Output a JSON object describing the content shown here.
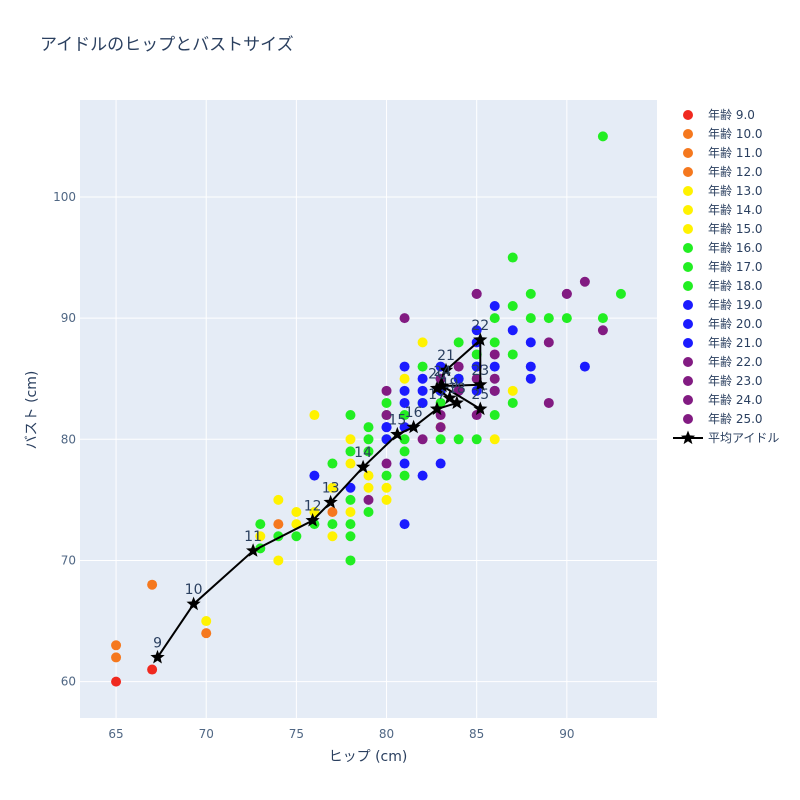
{
  "chart_data": {
    "type": "scatter",
    "title": "アイドルのヒップとバストサイズ",
    "xlabel": "ヒップ (cm)",
    "ylabel": "バスト (cm)",
    "xlim": [
      63,
      95
    ],
    "ylim": [
      57,
      108
    ],
    "xticks": [
      65,
      70,
      75,
      80,
      85,
      90
    ],
    "yticks": [
      60,
      70,
      80,
      90,
      100
    ],
    "grid": true,
    "legend_position": "right",
    "series": [
      {
        "name": "年齢 9.0",
        "color": "#f0291f",
        "points": [
          [
            65,
            60
          ],
          [
            67,
            61
          ]
        ]
      },
      {
        "name": "年齢 10.0",
        "color": "#f5781e",
        "points": [
          [
            65,
            63
          ],
          [
            65,
            62
          ],
          [
            67,
            68
          ]
        ]
      },
      {
        "name": "年齢 11.0",
        "color": "#f5781e",
        "points": [
          [
            70,
            64
          ]
        ]
      },
      {
        "name": "年齢 12.0",
        "color": "#f5781e",
        "points": [
          [
            74,
            73
          ],
          [
            77,
            74
          ]
        ]
      },
      {
        "name": "年齢 13.0",
        "color": "#fff200",
        "points": [
          [
            70,
            65
          ],
          [
            73,
            72
          ],
          [
            74,
            75
          ],
          [
            75,
            74
          ],
          [
            76,
            74
          ],
          [
            77,
            72
          ]
        ]
      },
      {
        "name": "年齢 14.0",
        "color": "#fff200",
        "points": [
          [
            74,
            70
          ],
          [
            75,
            73
          ],
          [
            76,
            82
          ],
          [
            77,
            76
          ],
          [
            78,
            78
          ],
          [
            78,
            80
          ],
          [
            79,
            77
          ],
          [
            80,
            75
          ]
        ]
      },
      {
        "name": "年齢 15.0",
        "color": "#fff200",
        "points": [
          [
            78,
            74
          ],
          [
            79,
            76
          ],
          [
            80,
            76
          ],
          [
            81,
            85
          ],
          [
            82,
            88
          ],
          [
            83,
            81
          ],
          [
            86,
            80
          ],
          [
            87,
            84
          ]
        ]
      },
      {
        "name": "年齢 16.0",
        "color": "#22ee22",
        "points": [
          [
            73,
            73
          ],
          [
            74,
            72
          ],
          [
            75,
            72
          ],
          [
            76,
            73
          ],
          [
            77,
            73
          ],
          [
            77,
            78
          ],
          [
            78,
            72
          ],
          [
            78,
            73
          ],
          [
            78,
            75
          ],
          [
            78,
            79
          ],
          [
            78,
            82
          ],
          [
            79,
            74
          ],
          [
            79,
            80
          ],
          [
            79,
            81
          ]
        ]
      },
      {
        "name": "年齢 17.0",
        "color": "#22ee22",
        "points": [
          [
            73,
            71
          ],
          [
            78,
            70
          ],
          [
            79,
            79
          ],
          [
            80,
            77
          ],
          [
            80,
            80
          ],
          [
            80,
            82
          ],
          [
            80,
            83
          ],
          [
            81,
            77
          ],
          [
            81,
            79
          ],
          [
            81,
            80
          ],
          [
            82,
            83
          ],
          [
            82,
            86
          ],
          [
            83,
            80
          ],
          [
            83,
            84
          ],
          [
            84,
            80
          ],
          [
            84,
            84
          ],
          [
            84,
            85
          ],
          [
            84,
            88
          ],
          [
            85,
            80
          ],
          [
            85,
            87
          ]
        ]
      },
      {
        "name": "年齢 18.0",
        "color": "#22ee22",
        "points": [
          [
            81,
            82
          ],
          [
            83,
            83
          ],
          [
            86,
            82
          ],
          [
            86,
            88
          ],
          [
            86,
            90
          ],
          [
            87,
            83
          ],
          [
            87,
            87
          ],
          [
            87,
            91
          ],
          [
            87,
            95
          ],
          [
            88,
            90
          ],
          [
            88,
            92
          ],
          [
            89,
            90
          ],
          [
            90,
            90
          ],
          [
            92,
            90
          ],
          [
            92,
            105
          ],
          [
            93,
            92
          ]
        ]
      },
      {
        "name": "年齢 19.0",
        "color": "#1b1bff",
        "points": [
          [
            76,
            77
          ],
          [
            78,
            76
          ],
          [
            80,
            80
          ],
          [
            80,
            81
          ],
          [
            81,
            78
          ],
          [
            81,
            81
          ],
          [
            82,
            77
          ],
          [
            82,
            84
          ],
          [
            83,
            78
          ],
          [
            83,
            86
          ]
        ]
      },
      {
        "name": "年齢 20.0",
        "color": "#1b1bff",
        "points": [
          [
            80,
            81
          ],
          [
            81,
            73
          ],
          [
            81,
            83
          ],
          [
            81,
            84
          ],
          [
            81,
            86
          ],
          [
            82,
            83
          ],
          [
            82,
            85
          ],
          [
            83,
            84
          ],
          [
            83,
            85
          ],
          [
            84,
            84
          ],
          [
            84,
            85
          ],
          [
            85,
            86
          ],
          [
            85,
            89
          ]
        ]
      },
      {
        "name": "年齢 21.0",
        "color": "#1b1bff",
        "points": [
          [
            85,
            84
          ],
          [
            85,
            86
          ],
          [
            85,
            88
          ],
          [
            86,
            84
          ],
          [
            86,
            86
          ],
          [
            86,
            91
          ],
          [
            87,
            89
          ],
          [
            88,
            85
          ],
          [
            88,
            86
          ],
          [
            88,
            88
          ],
          [
            91,
            86
          ]
        ]
      },
      {
        "name": "年齢 22.0",
        "color": "#821b82",
        "points": [
          [
            79,
            75
          ],
          [
            80,
            78
          ],
          [
            80,
            82
          ],
          [
            80,
            84
          ],
          [
            81,
            90
          ],
          [
            82,
            80
          ],
          [
            83,
            81
          ],
          [
            83,
            82
          ],
          [
            83,
            85
          ]
        ]
      },
      {
        "name": "年齢 23.0",
        "color": "#821b82",
        "points": [
          [
            84,
            84
          ],
          [
            84,
            86
          ],
          [
            85,
            82
          ],
          [
            85,
            85
          ],
          [
            85,
            92
          ],
          [
            86,
            84
          ],
          [
            86,
            85
          ],
          [
            86,
            87
          ]
        ]
      },
      {
        "name": "年齢 24.0",
        "color": "#821b82",
        "points": [
          [
            85,
            92
          ],
          [
            89,
            83
          ],
          [
            89,
            88
          ],
          [
            90,
            92
          ],
          [
            91,
            93
          ]
        ]
      },
      {
        "name": "年齢 25.0",
        "color": "#821b82",
        "points": [
          [
            92,
            89
          ],
          [
            90,
            92
          ]
        ]
      }
    ],
    "average": {
      "name": "平均アイドル",
      "color": "#000000",
      "points": [
        {
          "label": "9",
          "x": 67.3,
          "y": 62.0
        },
        {
          "label": "10",
          "x": 69.3,
          "y": 66.4
        },
        {
          "label": "11",
          "x": 72.6,
          "y": 70.8
        },
        {
          "label": "12",
          "x": 75.9,
          "y": 73.3
        },
        {
          "label": "13",
          "x": 76.9,
          "y": 74.8
        },
        {
          "label": "14",
          "x": 78.7,
          "y": 77.7
        },
        {
          "label": "15",
          "x": 80.6,
          "y": 80.4
        },
        {
          "label": "16",
          "x": 81.5,
          "y": 81.0
        },
        {
          "label": "17",
          "x": 82.8,
          "y": 82.5
        },
        {
          "label": "18",
          "x": 83.9,
          "y": 83.0
        },
        {
          "label": "19",
          "x": 83.5,
          "y": 83.4
        },
        {
          "label": "20",
          "x": 82.8,
          "y": 84.2
        },
        {
          "label": "21",
          "x": 83.3,
          "y": 85.7
        },
        {
          "label": "22",
          "x": 85.2,
          "y": 88.2
        },
        {
          "label": "23",
          "x": 85.2,
          "y": 84.5
        },
        {
          "label": "24",
          "x": 83.1,
          "y": 84.4
        },
        {
          "label": "25",
          "x": 85.2,
          "y": 82.5
        }
      ]
    }
  }
}
